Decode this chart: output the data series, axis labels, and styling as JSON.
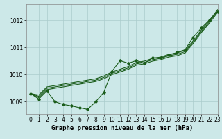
{
  "background_color": "#cce8e8",
  "grid_color": "#aacccc",
  "line_color": "#1a5c1a",
  "title": "Graphe pression niveau de la mer (hPa)",
  "title_fontsize": 6.5,
  "tick_fontsize": 5.5,
  "xlim": [
    -0.5,
    23
  ],
  "ylim": [
    1008.55,
    1012.6
  ],
  "yticks": [
    1009,
    1010,
    1011,
    1012
  ],
  "xticks": [
    0,
    1,
    2,
    3,
    4,
    5,
    6,
    7,
    8,
    9,
    10,
    11,
    12,
    13,
    14,
    15,
    16,
    17,
    18,
    19,
    20,
    21,
    22,
    23
  ],
  "straight_line1": [
    1009.3,
    1009.15,
    1009.45,
    1009.5,
    1009.55,
    1009.6,
    1009.65,
    1009.7,
    1009.75,
    1009.85,
    1010.0,
    1010.1,
    1010.2,
    1010.35,
    1010.4,
    1010.5,
    1010.55,
    1010.65,
    1010.7,
    1010.8,
    1011.15,
    1011.55,
    1011.9,
    1012.3
  ],
  "straight_line2": [
    1009.3,
    1009.2,
    1009.5,
    1009.55,
    1009.6,
    1009.65,
    1009.7,
    1009.75,
    1009.8,
    1009.9,
    1010.05,
    1010.15,
    1010.25,
    1010.4,
    1010.45,
    1010.55,
    1010.6,
    1010.7,
    1010.75,
    1010.85,
    1011.2,
    1011.6,
    1011.95,
    1012.35
  ],
  "straight_line3": [
    1009.3,
    1009.25,
    1009.55,
    1009.6,
    1009.65,
    1009.7,
    1009.75,
    1009.8,
    1009.85,
    1009.95,
    1010.1,
    1010.2,
    1010.3,
    1010.45,
    1010.5,
    1010.6,
    1010.65,
    1010.75,
    1010.8,
    1010.9,
    1011.25,
    1011.65,
    1012.0,
    1012.4
  ],
  "wiggly_line": [
    1009.3,
    1009.1,
    1009.4,
    1009.0,
    1008.9,
    1008.85,
    1008.78,
    1008.72,
    1009.0,
    1009.35,
    1010.12,
    1010.52,
    1010.42,
    1010.52,
    1010.42,
    1010.62,
    1010.62,
    1010.72,
    1010.82,
    1010.92,
    1011.38,
    1011.72,
    1012.02,
    1012.32
  ]
}
